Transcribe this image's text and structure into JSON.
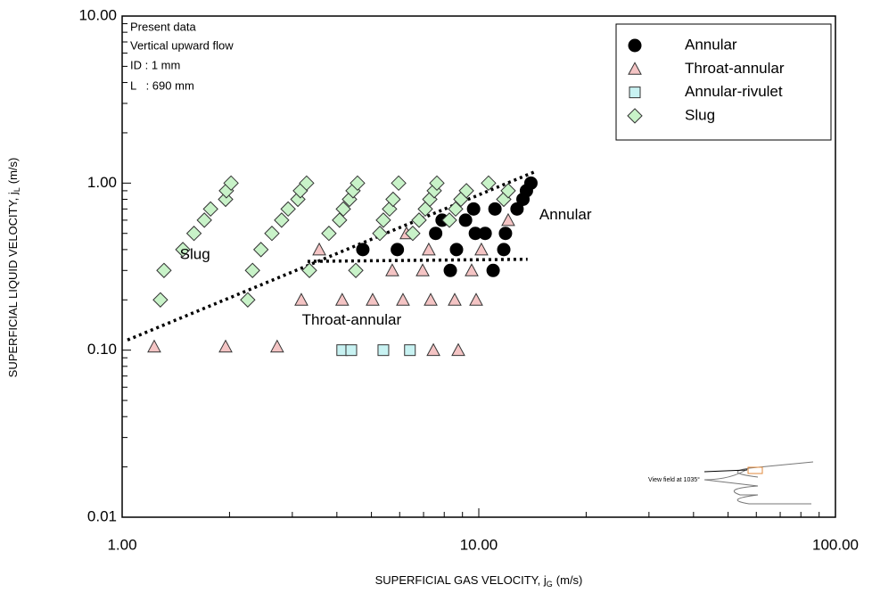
{
  "chart_data": {
    "type": "scatter",
    "xlabel": {
      "text": "SUPERFICIAL GAS VELOCITY, j",
      "sub": "G",
      "unit": "(m/s)"
    },
    "ylabel": {
      "text": "SUPERFICIAL LIQUID VELOCITY, j",
      "sub": "L",
      "unit": "(m/s)"
    },
    "log_x": true,
    "log_y": true,
    "xlim": [
      1,
      100
    ],
    "ylim": [
      0.01,
      10
    ],
    "xticks": [
      {
        "value": 1,
        "label": "1.00"
      },
      {
        "value": 10,
        "label": "10.00"
      },
      {
        "value": 100,
        "label": "100.00"
      }
    ],
    "yticks": [
      {
        "value": 0.01,
        "label": "0.01"
      },
      {
        "value": 0.1,
        "label": "0.10"
      },
      {
        "value": 1,
        "label": "1.00"
      },
      {
        "value": 10,
        "label": "10.00"
      }
    ],
    "xminorticks": [
      2,
      3,
      4,
      5,
      6,
      7,
      8,
      9,
      20,
      30,
      40,
      50,
      60,
      70,
      80,
      90
    ],
    "yminorticks": [
      0.02,
      0.03,
      0.04,
      0.05,
      0.06,
      0.07,
      0.08,
      0.09,
      0.2,
      0.3,
      0.4,
      0.5,
      0.6,
      0.7,
      0.8,
      0.9,
      2,
      3,
      4,
      5,
      6,
      7,
      8,
      9
    ],
    "info": [
      "Present data",
      "Vertical upward flow",
      "ID : 1 mm",
      "L   : 690 mm"
    ],
    "legend": "upper right",
    "series": [
      {
        "name": "Annular",
        "marker": "circle",
        "color": "#000000",
        "x": [
          4.73,
          5.91,
          7.57,
          7.89,
          8.32,
          8.66,
          9.18,
          9.67,
          9.78,
          10.42,
          10.97,
          11.1,
          11.75,
          11.88,
          12.8,
          13.3,
          13.6,
          14.0
        ],
        "values": [
          0.4,
          0.4,
          0.5,
          0.6,
          0.3,
          0.4,
          0.6,
          0.7,
          0.5,
          0.5,
          0.3,
          0.7,
          0.4,
          0.5,
          0.7,
          0.8,
          0.9,
          1.0
        ]
      },
      {
        "name": "Throat-annular",
        "marker": "triangle",
        "color": "#f4c4c4",
        "x": [
          1.23,
          1.95,
          2.72,
          7.46,
          8.76,
          3.18,
          4.14,
          5.04,
          6.13,
          7.33,
          8.56,
          9.83,
          5.72,
          6.96,
          9.55,
          3.57,
          7.24,
          10.17,
          6.27,
          12.09
        ],
        "values": [
          0.105,
          0.105,
          0.105,
          0.1,
          0.1,
          0.2,
          0.2,
          0.2,
          0.2,
          0.2,
          0.2,
          0.2,
          0.3,
          0.3,
          0.3,
          0.4,
          0.4,
          0.4,
          0.5,
          0.6
        ]
      },
      {
        "name": "Annular-rivulet",
        "marker": "square",
        "color": "#c8f2f2",
        "x": [
          4.14,
          4.39,
          5.4,
          6.41
        ],
        "values": [
          0.1,
          0.1,
          0.1,
          0.1
        ]
      },
      {
        "name": "Slug",
        "marker": "diamond",
        "color": "#c8f2c8",
        "x": [
          1.28,
          1.31,
          1.48,
          1.59,
          1.7,
          1.77,
          1.95,
          1.96,
          2.02,
          2.25,
          2.32,
          2.45,
          2.63,
          2.8,
          2.92,
          3.11,
          3.16,
          3.29,
          3.35,
          4.52,
          3.8,
          4.07,
          4.17,
          4.34,
          4.44,
          4.57,
          5.28,
          5.4,
          5.62,
          5.75,
          5.96,
          6.53,
          6.8,
          7.08,
          7.29,
          7.5,
          7.63,
          8.27,
          8.61,
          8.91,
          9.23,
          10.65,
          11.75,
          12.09
        ],
        "values": [
          0.2,
          0.3,
          0.4,
          0.5,
          0.6,
          0.7,
          0.8,
          0.9,
          1.0,
          0.2,
          0.3,
          0.4,
          0.5,
          0.6,
          0.7,
          0.8,
          0.9,
          1.0,
          0.3,
          0.3,
          0.5,
          0.6,
          0.7,
          0.8,
          0.9,
          1.0,
          0.5,
          0.6,
          0.7,
          0.8,
          1.0,
          0.5,
          0.6,
          0.7,
          0.8,
          0.9,
          1.0,
          0.6,
          0.7,
          0.8,
          0.9,
          1.0,
          0.8,
          0.9
        ]
      }
    ],
    "boundary_lines": [
      {
        "x": [
          1.035,
          14.37
        ],
        "y": [
          0.115,
          1.17
        ]
      },
      {
        "x": [
          3.31,
          13.7
        ],
        "y": [
          0.34,
          0.35
        ]
      }
    ],
    "annotations": [
      {
        "text": "Slug",
        "x": 1.6,
        "y": 0.37
      },
      {
        "text": "Annular",
        "x": 17.5,
        "y": 0.64
      },
      {
        "text": "Throat-annular",
        "x": 4.4,
        "y": 0.15
      }
    ],
    "inset_label": "View field at 1035°"
  }
}
